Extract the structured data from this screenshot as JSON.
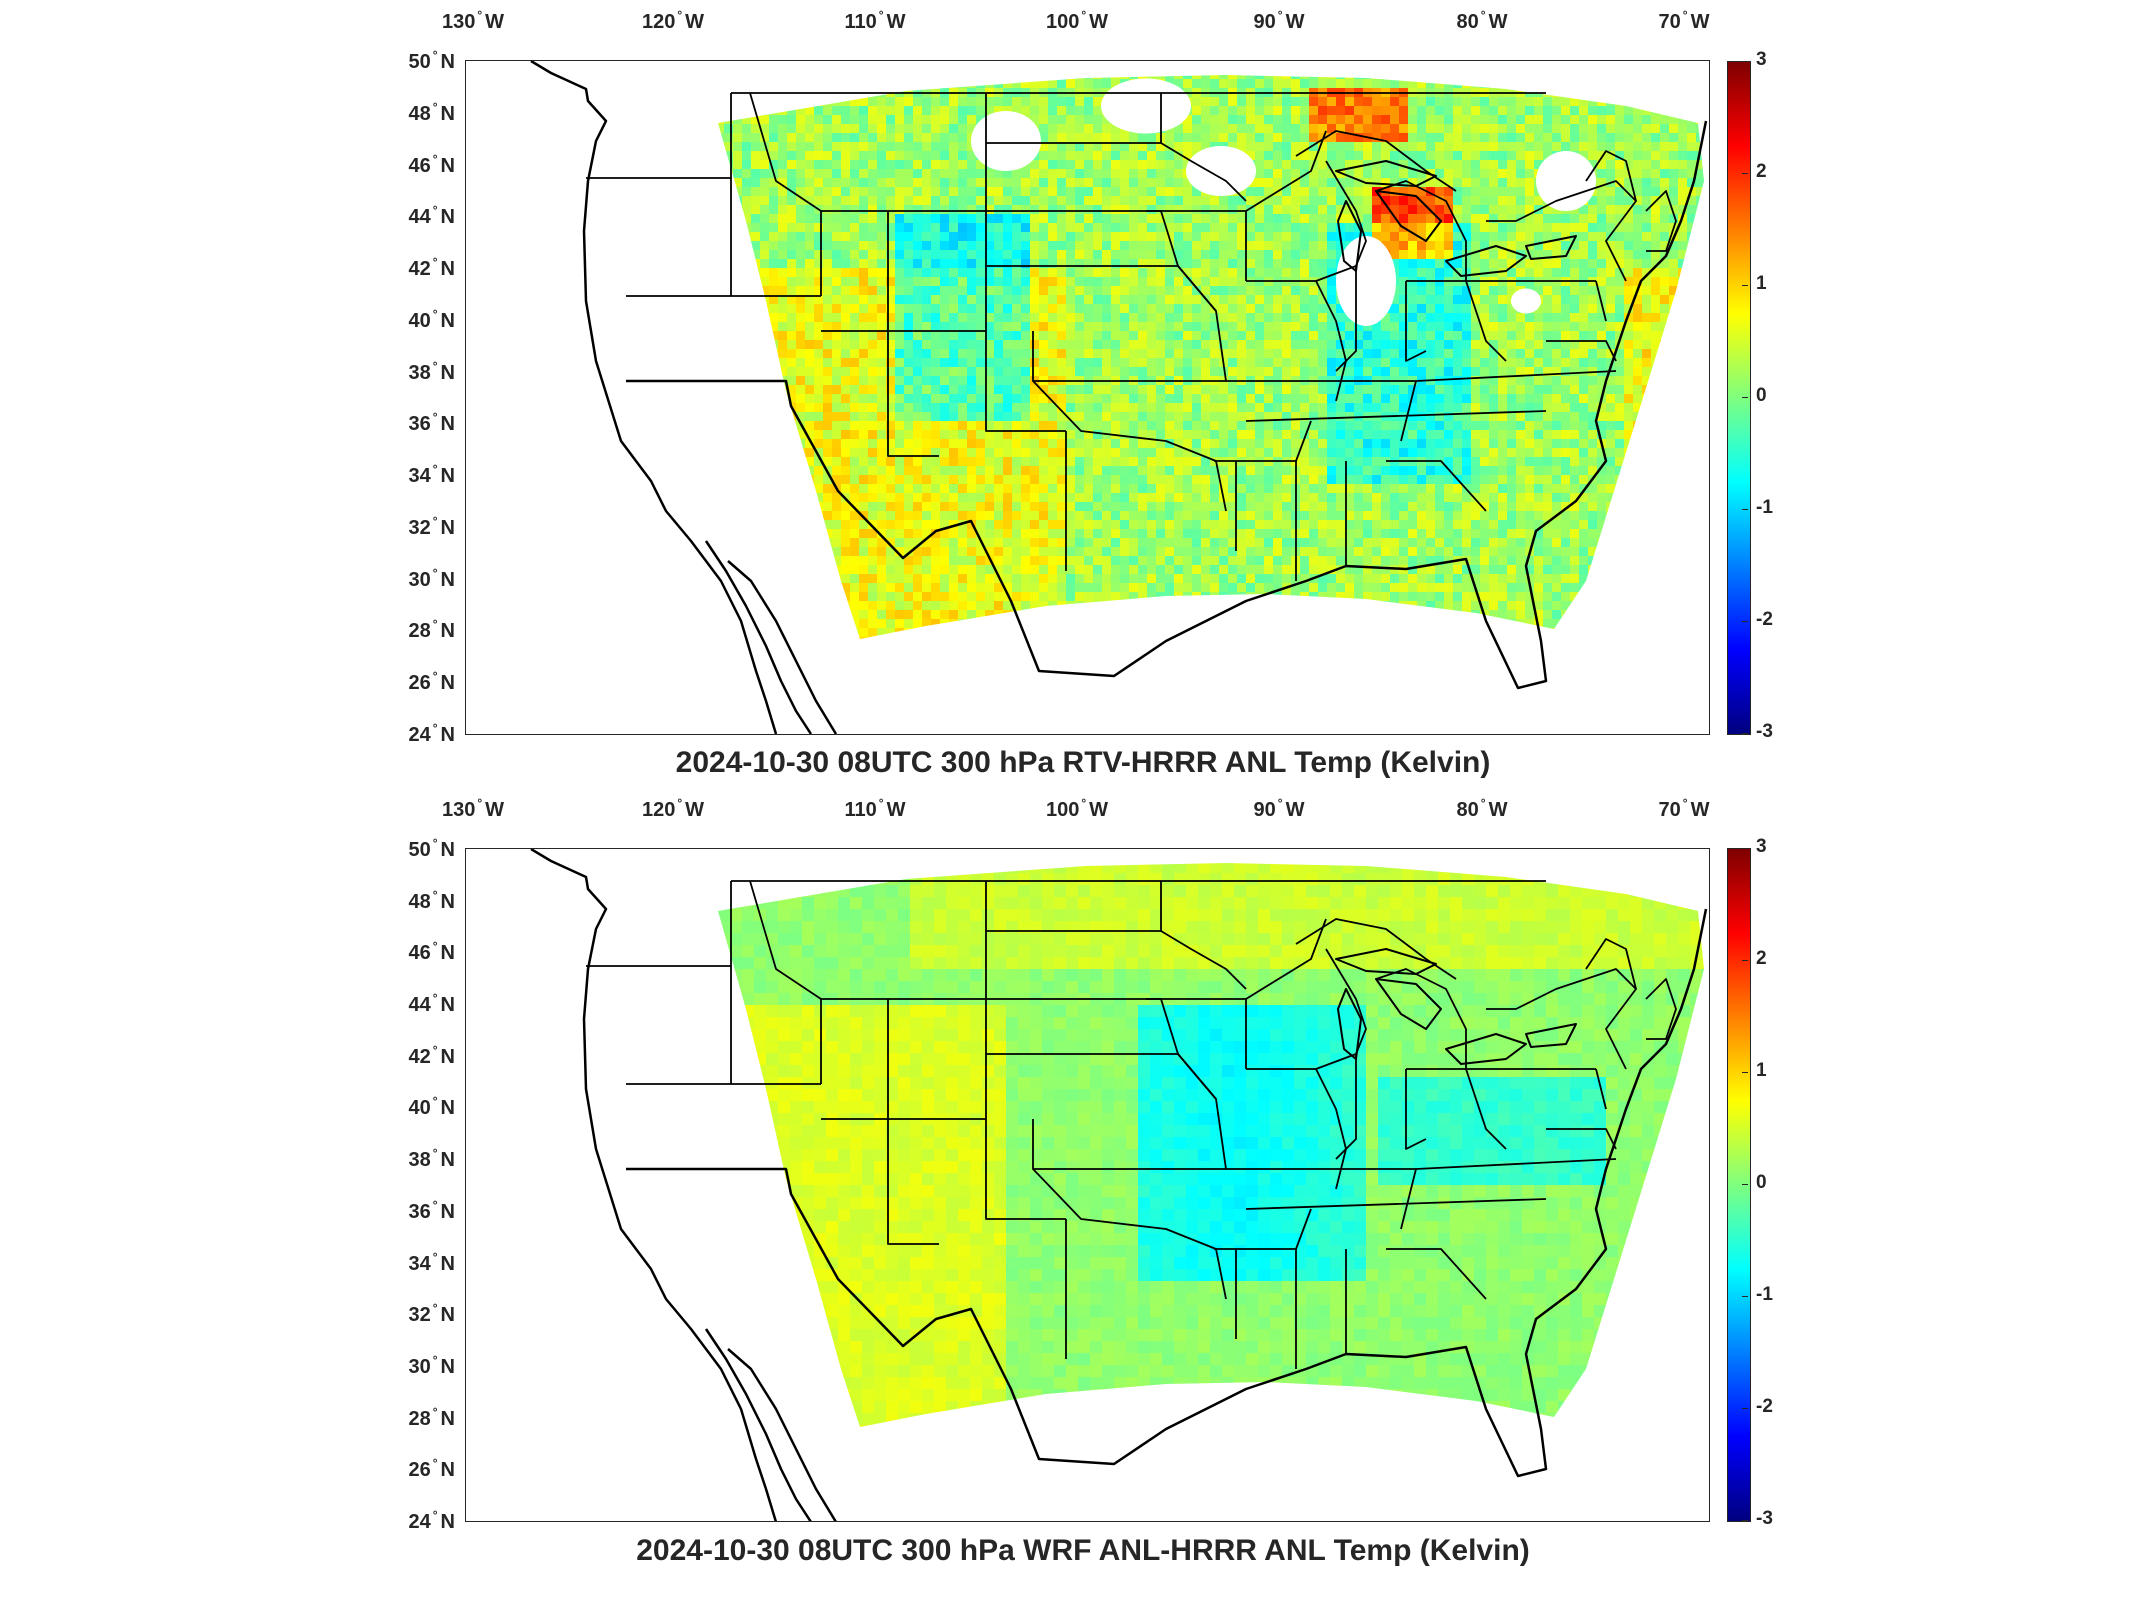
{
  "panels": [
    {
      "title": "2024-10-30 08UTC 300 hPa RTV-HRRR ANL Temp (Kelvin)",
      "field": "rtv"
    },
    {
      "title": "2024-10-30 08UTC 300 hPa WRF ANL-HRRR ANL Temp (Kelvin)",
      "field": "wrf"
    }
  ],
  "axes": {
    "lon_ticks": [
      {
        "value": "130",
        "hemi": "W"
      },
      {
        "value": "120",
        "hemi": "W"
      },
      {
        "value": "110",
        "hemi": "W"
      },
      {
        "value": "100",
        "hemi": "W"
      },
      {
        "value": "90",
        "hemi": "W"
      },
      {
        "value": "80",
        "hemi": "W"
      },
      {
        "value": "70",
        "hemi": "W"
      }
    ],
    "lat_ticks": [
      {
        "value": "50",
        "hemi": "N"
      },
      {
        "value": "48",
        "hemi": "N"
      },
      {
        "value": "46",
        "hemi": "N"
      },
      {
        "value": "44",
        "hemi": "N"
      },
      {
        "value": "42",
        "hemi": "N"
      },
      {
        "value": "40",
        "hemi": "N"
      },
      {
        "value": "38",
        "hemi": "N"
      },
      {
        "value": "36",
        "hemi": "N"
      },
      {
        "value": "34",
        "hemi": "N"
      },
      {
        "value": "32",
        "hemi": "N"
      },
      {
        "value": "30",
        "hemi": "N"
      },
      {
        "value": "28",
        "hemi": "N"
      },
      {
        "value": "26",
        "hemi": "N"
      },
      {
        "value": "24",
        "hemi": "N"
      }
    ]
  },
  "colorbar": {
    "ticks": [
      "3",
      "2",
      "1",
      "0",
      "-1",
      "-2",
      "-3"
    ],
    "range": [
      -3,
      3
    ],
    "colormap": "jet",
    "colors": [
      "#00007f",
      "#0000ff",
      "#007fff",
      "#00ffff",
      "#7fff7f",
      "#ffff00",
      "#ff7f00",
      "#ff0000",
      "#7f0000"
    ]
  },
  "colors": {
    "axis": "#262626",
    "border": "#000000",
    "missing": "#ffffff"
  }
}
